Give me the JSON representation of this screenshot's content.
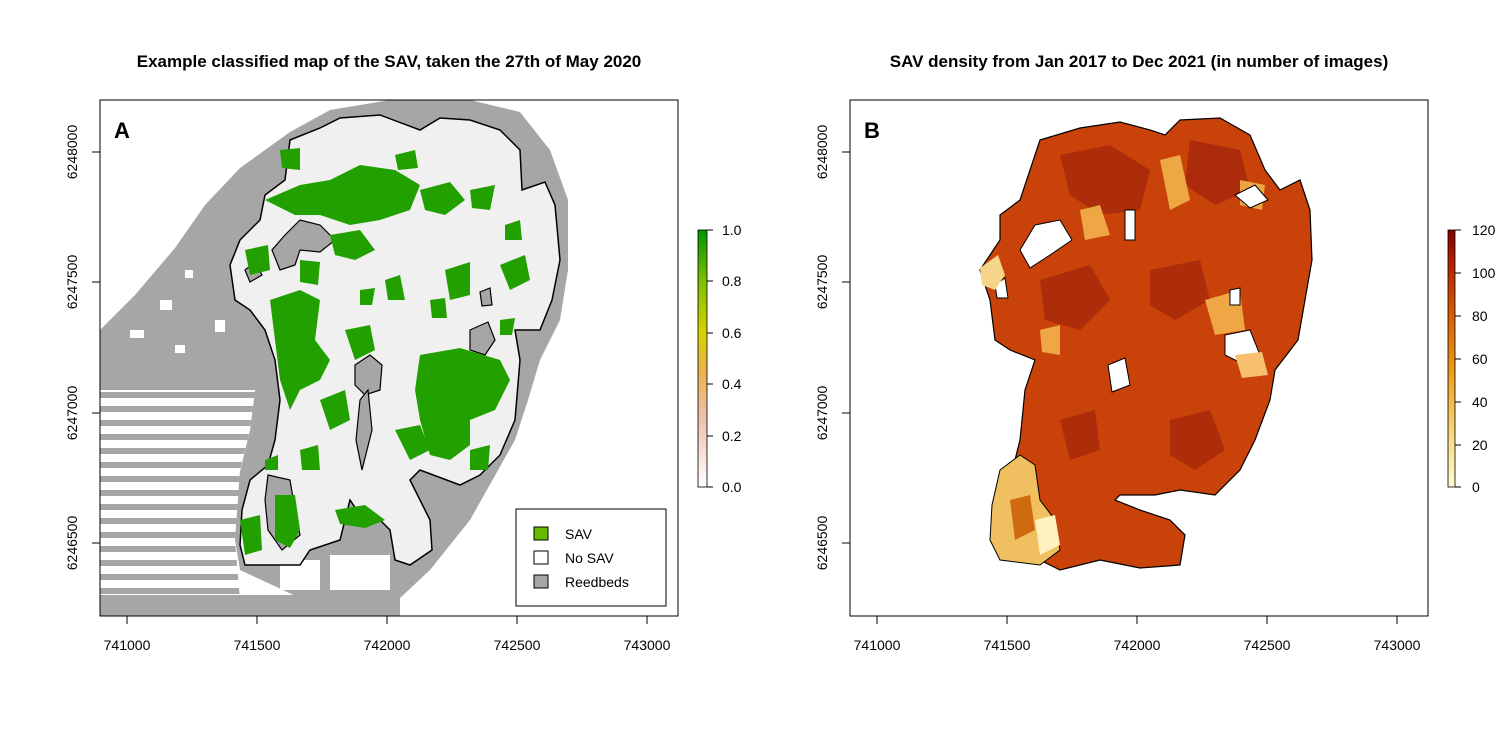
{
  "panels": {
    "a": {
      "title": "Example classified map of the SAV, taken the 27th of May 2020",
      "label": "A",
      "x_ticks": [
        "741000",
        "741500",
        "742000",
        "742500",
        "743000"
      ],
      "y_ticks": [
        "6246500",
        "6247000",
        "6247500",
        "6248000"
      ],
      "colorbar_ticks": [
        "0.0",
        "0.2",
        "0.4",
        "0.6",
        "0.8",
        "1.0"
      ],
      "legend": [
        {
          "label": "SAV",
          "color": "#66bb00"
        },
        {
          "label": "No SAV",
          "color": "#ffffff"
        },
        {
          "label": "Reedbeds",
          "color": "#a6a6a6"
        }
      ]
    },
    "b": {
      "title": "SAV density from Jan 2017 to Dec 2021 (in number of images)",
      "label": "B",
      "x_ticks": [
        "741000",
        "741500",
        "742000",
        "742500",
        "743000"
      ],
      "y_ticks": [
        "6246500",
        "6247000",
        "6247500",
        "6248000"
      ],
      "colorbar_ticks": [
        "0",
        "20",
        "40",
        "60",
        "80",
        "100",
        "120"
      ]
    }
  },
  "colors": {
    "reedbeds": "#a6a6a6",
    "no_sav": "#f0f0f0",
    "sav": "#22a000",
    "density_high": "#c8320a",
    "density_low": "#fff5c8"
  }
}
